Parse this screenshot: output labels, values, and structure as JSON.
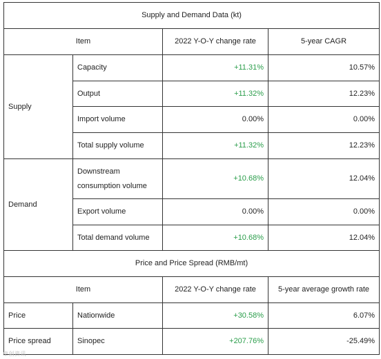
{
  "section1": {
    "title": "Supply and Demand Data (kt)",
    "header": {
      "item": "Item",
      "col1": "2022 Y-O-Y change rate",
      "col2": "5-year CAGR"
    },
    "groups": [
      {
        "label": "Supply",
        "rows": [
          {
            "item": "Capacity",
            "yoy": "+11.31%",
            "cagr": "10.57%"
          },
          {
            "item": "Output",
            "yoy": "+11.32%",
            "cagr": "12.23%"
          },
          {
            "item": "Import volume",
            "yoy": "0.00%",
            "cagr": "0.00%"
          },
          {
            "item": "Total supply volume",
            "yoy": "+11.32%",
            "cagr": "12.23%"
          }
        ]
      },
      {
        "label": "Demand",
        "rows": [
          {
            "item": "Downstream consumption volume",
            "yoy": "+10.68%",
            "cagr": "12.04%"
          },
          {
            "item": "Export volume",
            "yoy": "0.00%",
            "cagr": "0.00%"
          },
          {
            "item": "Total demand volume",
            "yoy": "+10.68%",
            "cagr": "12.04%"
          }
        ]
      }
    ]
  },
  "section2": {
    "title": "Price and Price Spread (RMB/mt)",
    "header": {
      "item": "Item",
      "col1": "2022 Y-O-Y change rate",
      "col2": "5-year average growth rate"
    },
    "rows": [
      {
        "group": "Price",
        "item": "Nationwide",
        "yoy": "+30.58%",
        "avg": "6.07%"
      },
      {
        "group": "Price spread",
        "item": "Sinopec",
        "yoy": "+207.76%",
        "avg": "-25.49%"
      }
    ]
  },
  "colors": {
    "positive": "#2a9d4a",
    "neutral": "#222222",
    "border": "#333333"
  },
  "watermark": "卓创资讯"
}
